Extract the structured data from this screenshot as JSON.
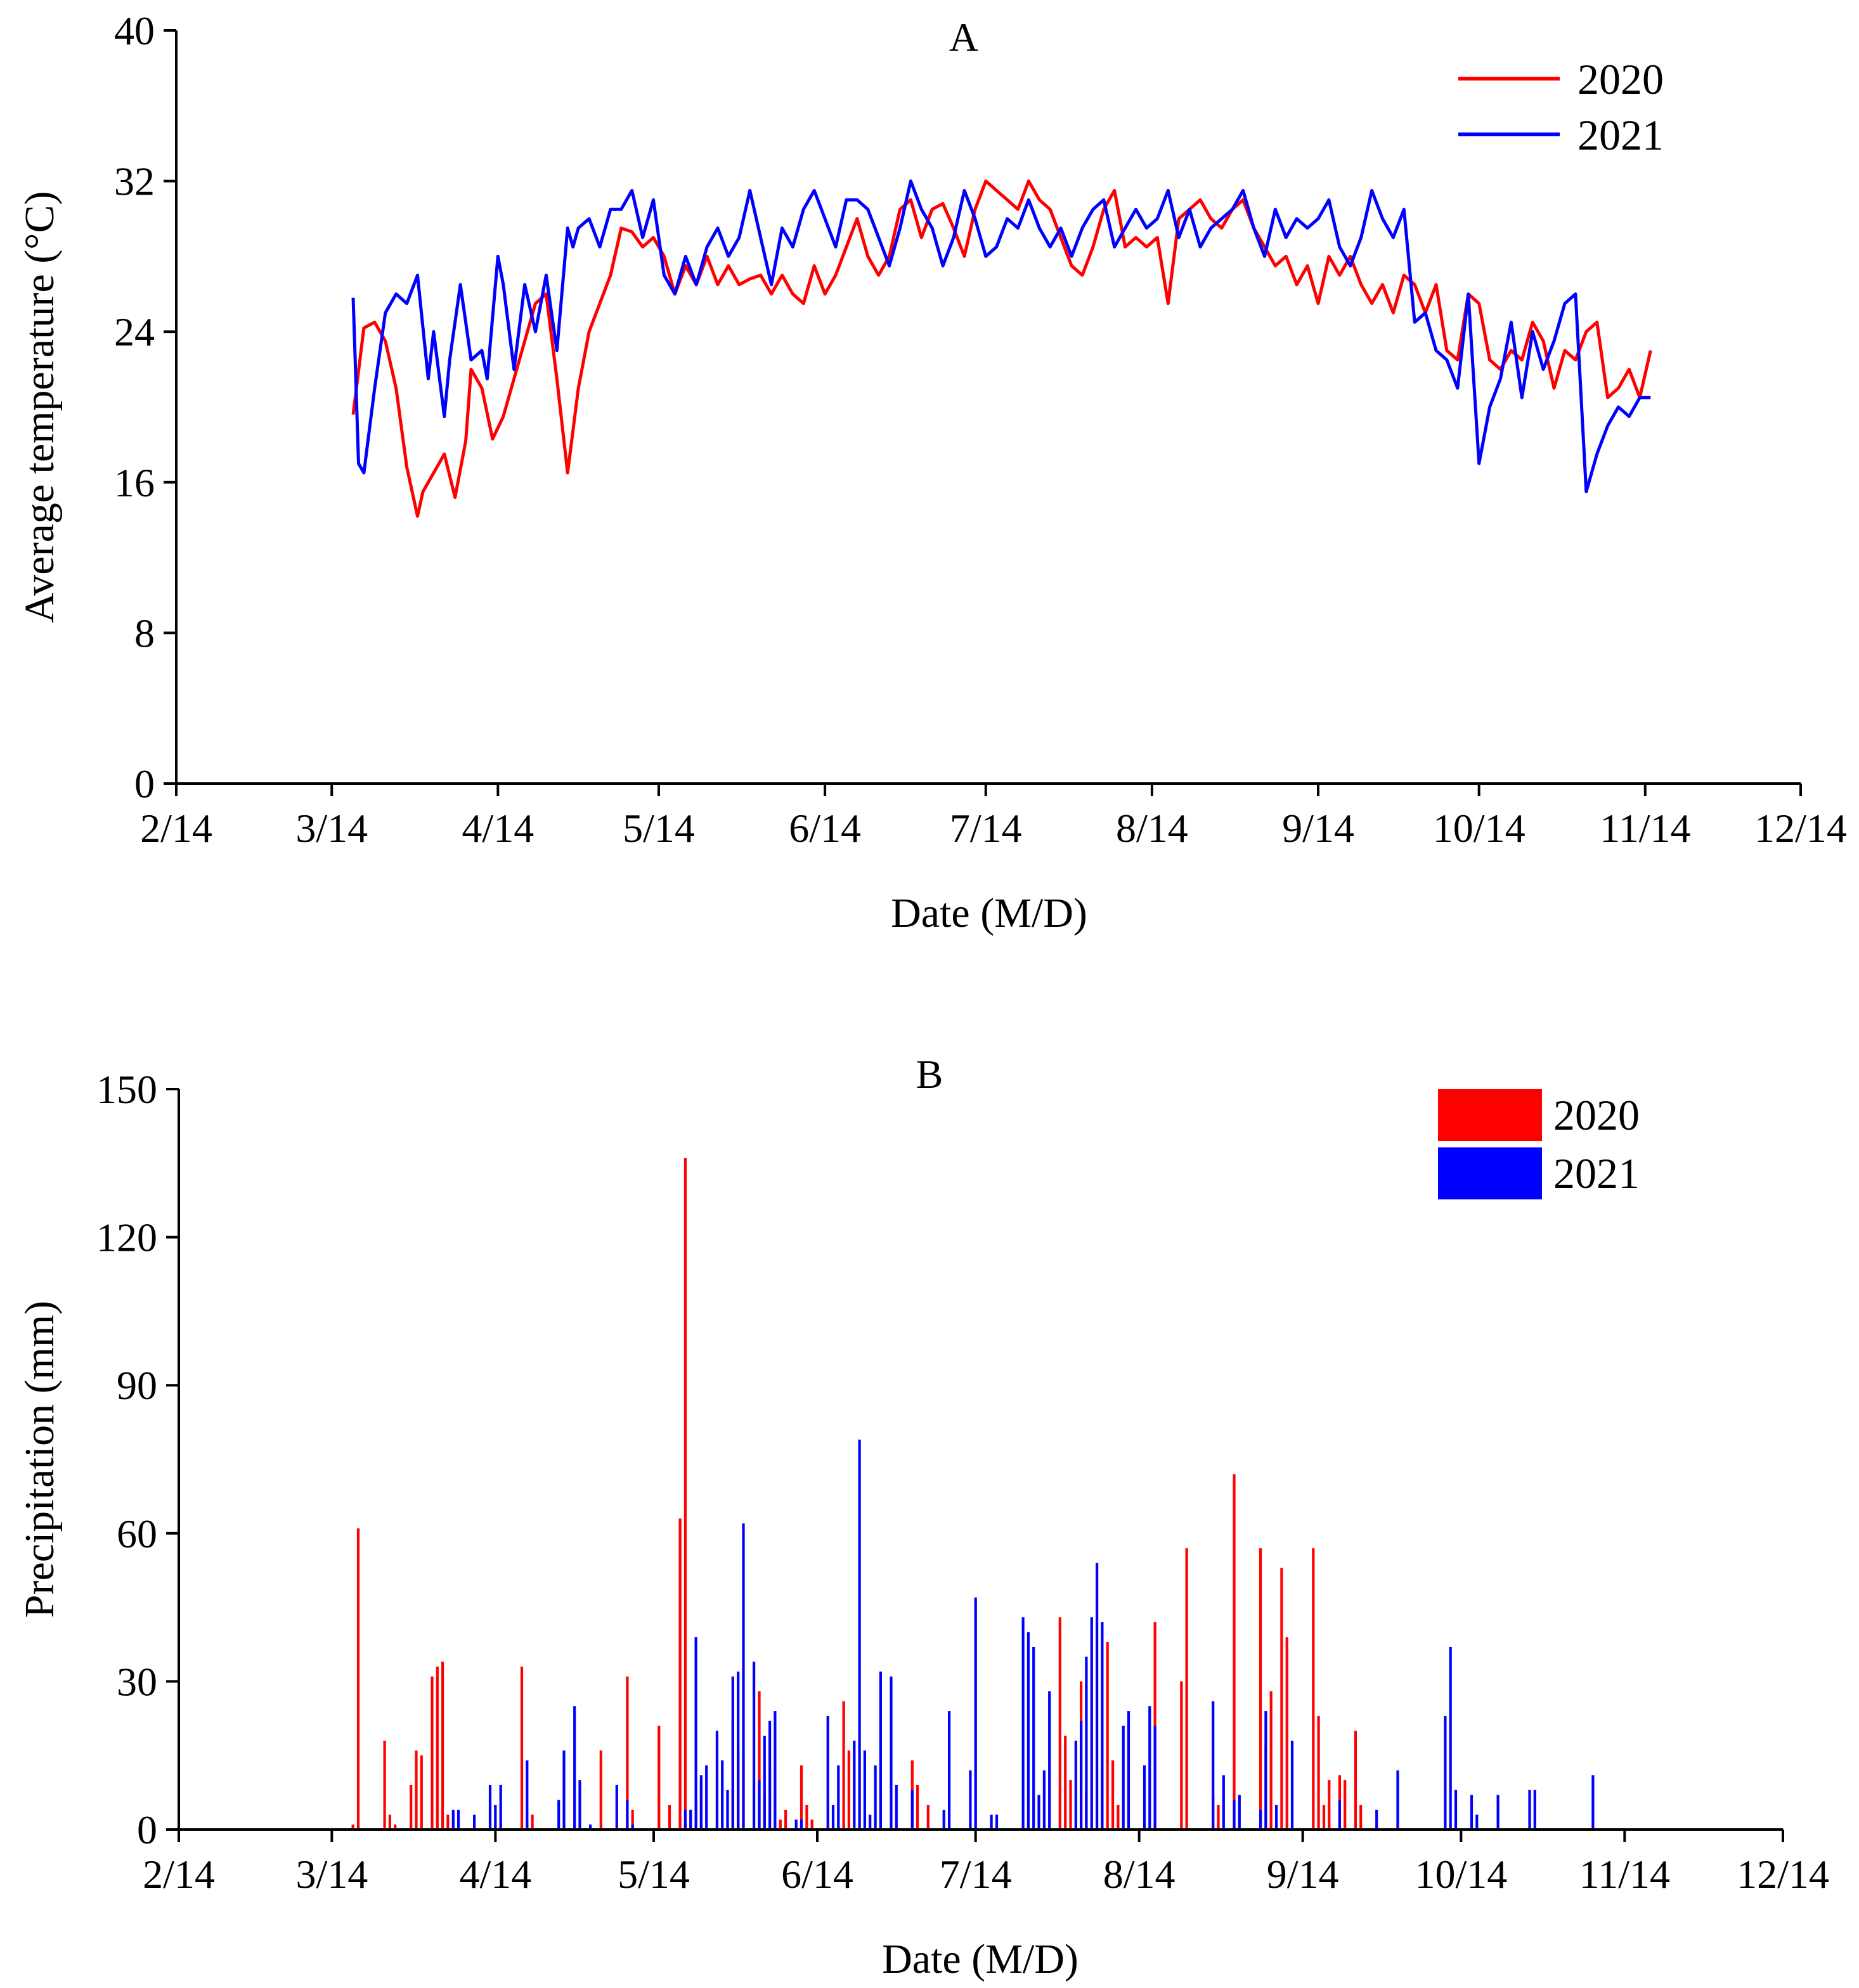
{
  "chart_data": [
    {
      "type": "line",
      "panel_label": "A",
      "title": "",
      "xlabel": "Date (M/D)",
      "ylabel": "Average temperature (°C)",
      "ylim": [
        0,
        40
      ],
      "yticks": [
        "0",
        "8",
        "16",
        "24",
        "32",
        "40"
      ],
      "xlim_days": [
        0,
        303
      ],
      "xticks": [
        "2/14",
        "3/14",
        "4/14",
        "5/14",
        "6/14",
        "7/14",
        "8/14",
        "9/14",
        "10/14",
        "11/14",
        "12/14"
      ],
      "xtick_days": [
        0,
        29,
        60,
        90,
        121,
        151,
        182,
        213,
        243,
        274,
        304
      ],
      "legend_position": "top-right",
      "series": [
        {
          "name": "2020",
          "color": "#ff0000",
          "days": [
            33,
            35,
            37,
            39,
            41,
            43,
            45,
            46,
            48,
            50,
            52,
            54,
            55,
            57,
            59,
            61,
            63,
            65,
            67,
            69,
            71,
            73,
            75,
            77,
            79,
            81,
            83,
            85,
            87,
            89,
            91,
            93,
            95,
            97,
            99,
            101,
            103,
            105,
            107,
            109,
            111,
            113,
            115,
            117,
            119,
            121,
            123,
            125,
            127,
            129,
            131,
            133,
            135,
            137,
            139,
            141,
            143,
            145,
            147,
            149,
            151,
            153,
            155,
            157,
            159,
            161,
            163,
            165,
            167,
            169,
            171,
            173,
            175,
            177,
            179,
            181,
            183,
            185,
            187,
            189,
            191,
            193,
            195,
            197,
            199,
            201,
            203,
            205,
            207,
            209,
            211,
            213,
            215,
            217,
            219,
            221,
            223,
            225,
            227,
            229,
            231,
            233,
            235,
            237,
            239,
            241,
            243,
            245,
            247,
            249,
            251,
            253,
            255,
            257,
            259,
            261,
            263,
            265,
            267,
            269,
            271,
            273,
            275
          ],
          "values": [
            19.6,
            24.2,
            24.5,
            23.5,
            21.0,
            16.8,
            14.2,
            15.5,
            16.5,
            17.5,
            15.2,
            18.2,
            22.0,
            21.0,
            18.3,
            19.5,
            21.5,
            23.5,
            25.5,
            26.0,
            21.5,
            16.5,
            21.0,
            24.0,
            25.5,
            27.0,
            29.5,
            29.3,
            28.5,
            29.0,
            28.0,
            26.0,
            27.5,
            26.5,
            28.0,
            26.5,
            27.5,
            26.5,
            26.8,
            27.0,
            26.0,
            27.0,
            26.0,
            25.5,
            27.5,
            26.0,
            27.0,
            28.5,
            30.0,
            28.0,
            27.0,
            28.0,
            30.5,
            31.0,
            29.0,
            30.5,
            30.8,
            29.5,
            28.0,
            30.5,
            32.0,
            31.5,
            31.0,
            30.5,
            32.0,
            31.0,
            30.5,
            29.0,
            27.5,
            27.0,
            28.5,
            30.5,
            31.5,
            28.5,
            29.0,
            28.5,
            29.0,
            25.5,
            30.0,
            30.5,
            31.0,
            30.0,
            29.5,
            30.5,
            31.0,
            29.5,
            28.5,
            27.5,
            28.0,
            26.5,
            27.5,
            25.5,
            28.0,
            27.0,
            28.0,
            26.5,
            25.5,
            26.5,
            25.0,
            27.0,
            26.5,
            25.0,
            26.5,
            23.0,
            22.5,
            26.0,
            25.5,
            22.5,
            22.0,
            23.0,
            22.5,
            24.5,
            23.5,
            21.0,
            23.0,
            22.5,
            24.0,
            24.5,
            20.5,
            21.0,
            22.0,
            20.5,
            23.0
          ]
        },
        {
          "name": "2021",
          "color": "#0000ff",
          "days": [
            33,
            34,
            35,
            37,
            39,
            41,
            43,
            45,
            47,
            48,
            50,
            51,
            53,
            55,
            57,
            58,
            60,
            61,
            63,
            65,
            67,
            69,
            71,
            73,
            74,
            75,
            77,
            79,
            81,
            83,
            85,
            87,
            89,
            91,
            93,
            95,
            97,
            99,
            101,
            103,
            105,
            107,
            109,
            111,
            113,
            115,
            117,
            119,
            121,
            123,
            125,
            127,
            129,
            131,
            133,
            135,
            137,
            139,
            141,
            143,
            145,
            147,
            149,
            151,
            153,
            155,
            157,
            159,
            161,
            163,
            165,
            167,
            169,
            171,
            173,
            175,
            177,
            179,
            181,
            183,
            185,
            187,
            189,
            191,
            193,
            195,
            197,
            199,
            201,
            203,
            205,
            207,
            209,
            211,
            213,
            215,
            217,
            219,
            221,
            223,
            225,
            227,
            229,
            231,
            233,
            235,
            237,
            239,
            241,
            243,
            245,
            247,
            249,
            251,
            253,
            255,
            257,
            259,
            261,
            263,
            265,
            267,
            269,
            271,
            273,
            275
          ],
          "values": [
            25.8,
            17.0,
            16.5,
            21.0,
            25.0,
            26.0,
            25.5,
            27.0,
            21.5,
            24.0,
            19.5,
            22.5,
            26.5,
            22.5,
            23.0,
            21.5,
            28.0,
            26.5,
            22.0,
            26.5,
            24.0,
            27.0,
            23.0,
            29.5,
            28.5,
            29.5,
            30.0,
            28.5,
            30.5,
            30.5,
            31.5,
            29.0,
            31.0,
            27.0,
            26.0,
            28.0,
            26.5,
            28.5,
            29.5,
            28.0,
            29.0,
            31.5,
            29.0,
            26.5,
            29.5,
            28.5,
            30.5,
            31.5,
            30.0,
            28.5,
            31.0,
            31.0,
            30.5,
            29.0,
            27.5,
            29.5,
            32.0,
            30.5,
            29.5,
            27.5,
            29.0,
            31.5,
            30.0,
            28.0,
            28.5,
            30.0,
            29.5,
            31.0,
            29.5,
            28.5,
            29.5,
            28.0,
            29.5,
            30.5,
            31.0,
            28.5,
            29.5,
            30.5,
            29.5,
            30.0,
            31.5,
            29.0,
            30.5,
            28.5,
            29.5,
            30.0,
            30.5,
            31.5,
            29.5,
            28.0,
            30.5,
            29.0,
            30.0,
            29.5,
            30.0,
            31.0,
            28.5,
            27.5,
            29.0,
            31.5,
            30.0,
            29.0,
            30.5,
            24.5,
            25.0,
            23.0,
            22.5,
            21.0,
            26.0,
            17.0,
            20.0,
            21.5,
            24.5,
            20.5,
            24.0,
            22.0,
            23.5,
            25.5,
            26.0,
            15.5,
            17.5,
            19.0,
            20.0,
            19.5,
            20.5,
            20.5
          ]
        }
      ]
    },
    {
      "type": "bar",
      "panel_label": "B",
      "title": "",
      "xlabel": "Date (M/D)",
      "ylabel": "Precipitation (mm)",
      "ylim": [
        0,
        150
      ],
      "yticks": [
        "0",
        "30",
        "60",
        "90",
        "120",
        "150"
      ],
      "xlim_days": [
        0,
        304
      ],
      "xticks": [
        "2/14",
        "3/14",
        "4/14",
        "5/14",
        "6/14",
        "7/14",
        "8/14",
        "9/14",
        "10/14",
        "11/14",
        "12/14"
      ],
      "xtick_days": [
        0,
        29,
        60,
        90,
        121,
        151,
        182,
        213,
        243,
        274,
        304
      ],
      "legend_position": "top-right",
      "series": [
        {
          "name": "2020",
          "color": "#ff0000",
          "days": [
            33,
            34,
            39,
            40,
            41,
            44,
            45,
            46,
            48,
            49,
            50,
            51,
            52,
            65,
            66,
            67,
            80,
            85,
            86,
            91,
            93,
            95,
            96,
            97,
            98,
            99,
            105,
            106,
            107,
            110,
            111,
            112,
            113,
            114,
            115,
            118,
            119,
            120,
            126,
            127,
            139,
            140,
            142,
            167,
            168,
            169,
            171,
            172,
            175,
            176,
            177,
            178,
            185,
            190,
            191,
            196,
            197,
            200,
            205,
            206,
            207,
            209,
            210,
            215,
            216,
            217,
            218,
            220,
            221,
            223,
            224
          ],
          "values": [
            1,
            61,
            18,
            3,
            1,
            9,
            16,
            15,
            31,
            33,
            34,
            3,
            2,
            33,
            2,
            3,
            16,
            31,
            4,
            21,
            5,
            63,
            136,
            4,
            6,
            10,
            22,
            16,
            15,
            28,
            7,
            13,
            7,
            2,
            4,
            13,
            5,
            2,
            26,
            16,
            14,
            9,
            5,
            43,
            19,
            10,
            30,
            8,
            13,
            38,
            14,
            5,
            42,
            30,
            57,
            7,
            5,
            72,
            57,
            17,
            28,
            53,
            39,
            57,
            23,
            5,
            10,
            11,
            10,
            20,
            5
          ]
        },
        {
          "name": "2021",
          "color": "#0000ff",
          "days": [
            52,
            53,
            56,
            59,
            60,
            61,
            66,
            72,
            73,
            75,
            76,
            78,
            83,
            85,
            86,
            96,
            97,
            98,
            99,
            100,
            102,
            103,
            104,
            105,
            106,
            107,
            109,
            110,
            111,
            112,
            113,
            117,
            118,
            123,
            124,
            125,
            128,
            129,
            130,
            131,
            132,
            133,
            135,
            136,
            139,
            145,
            146,
            150,
            151,
            154,
            155,
            160,
            161,
            162,
            163,
            164,
            165,
            170,
            171,
            172,
            173,
            174,
            175,
            179,
            180,
            183,
            184,
            185,
            196,
            198,
            200,
            201,
            205,
            206,
            208,
            211,
            220,
            227,
            231,
            240,
            241,
            242,
            245,
            246,
            250,
            256,
            257,
            268
          ],
          "values": [
            4,
            4,
            3,
            9,
            5,
            9,
            14,
            6,
            16,
            25,
            10,
            1,
            9,
            6,
            1,
            4,
            4,
            39,
            11,
            13,
            20,
            14,
            8,
            31,
            32,
            62,
            34,
            10,
            19,
            22,
            24,
            2,
            2,
            23,
            5,
            13,
            18,
            79,
            16,
            3,
            13,
            32,
            31,
            9,
            8,
            4,
            24,
            12,
            47,
            3,
            3,
            43,
            40,
            37,
            7,
            12,
            28,
            18,
            22,
            35,
            43,
            54,
            42,
            21,
            24,
            13,
            25,
            21,
            26,
            11,
            6,
            7,
            4,
            24,
            5,
            18,
            6,
            4,
            12,
            23,
            37,
            8,
            7,
            3,
            7,
            8,
            8,
            11
          ]
        }
      ]
    }
  ]
}
